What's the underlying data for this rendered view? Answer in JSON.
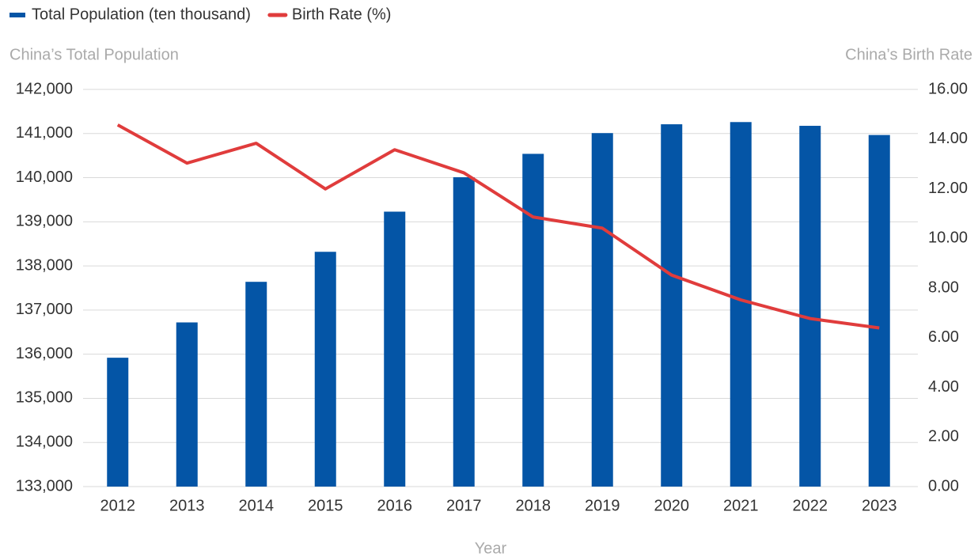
{
  "chart_data": {
    "type": "bar-line",
    "y_label": "China’s Total Population",
    "y2_label": "China’s Birth Rate",
    "x_label": "Year",
    "categories": [
      "2012",
      "2013",
      "2014",
      "2015",
      "2016",
      "2017",
      "2018",
      "2019",
      "2020",
      "2021",
      "2022",
      "2023"
    ],
    "series": [
      {
        "name": "Total Population (ten thousand)",
        "type": "bar",
        "color": "#0455a6",
        "axis": "y",
        "values": [
          135920,
          136720,
          137640,
          138320,
          139230,
          140010,
          140540,
          141010,
          141210,
          141260,
          141175,
          140967
        ]
      },
      {
        "name": "Birth Rate (%)",
        "type": "line",
        "color": "#e03c3c",
        "axis": "y2",
        "values": [
          14.57,
          13.03,
          13.83,
          11.99,
          13.57,
          12.64,
          10.86,
          10.41,
          8.52,
          7.52,
          6.77,
          6.39
        ]
      }
    ],
    "ylim": [
      133000,
      142000
    ],
    "yticks": [
      {
        "value": 133000,
        "label": "133,000"
      },
      {
        "value": 134000,
        "label": "134,000"
      },
      {
        "value": 135000,
        "label": "135,000"
      },
      {
        "value": 136000,
        "label": "136,000"
      },
      {
        "value": 137000,
        "label": "137,000"
      },
      {
        "value": 138000,
        "label": "138,000"
      },
      {
        "value": 139000,
        "label": "139,000"
      },
      {
        "value": 140000,
        "label": "140,000"
      },
      {
        "value": 141000,
        "label": "141,000"
      },
      {
        "value": 142000,
        "label": "142,000"
      }
    ],
    "y2lim": [
      0,
      16
    ],
    "y2ticks": [
      {
        "value": 0,
        "label": "0.00"
      },
      {
        "value": 2,
        "label": "2.00"
      },
      {
        "value": 4,
        "label": "4.00"
      },
      {
        "value": 6,
        "label": "6.00"
      },
      {
        "value": 8,
        "label": "8.00"
      },
      {
        "value": 10,
        "label": "10.00"
      },
      {
        "value": 12,
        "label": "12.00"
      },
      {
        "value": 14,
        "label": "14.00"
      },
      {
        "value": 16,
        "label": "16.00"
      }
    ],
    "grid": true,
    "legend": "top-left"
  }
}
